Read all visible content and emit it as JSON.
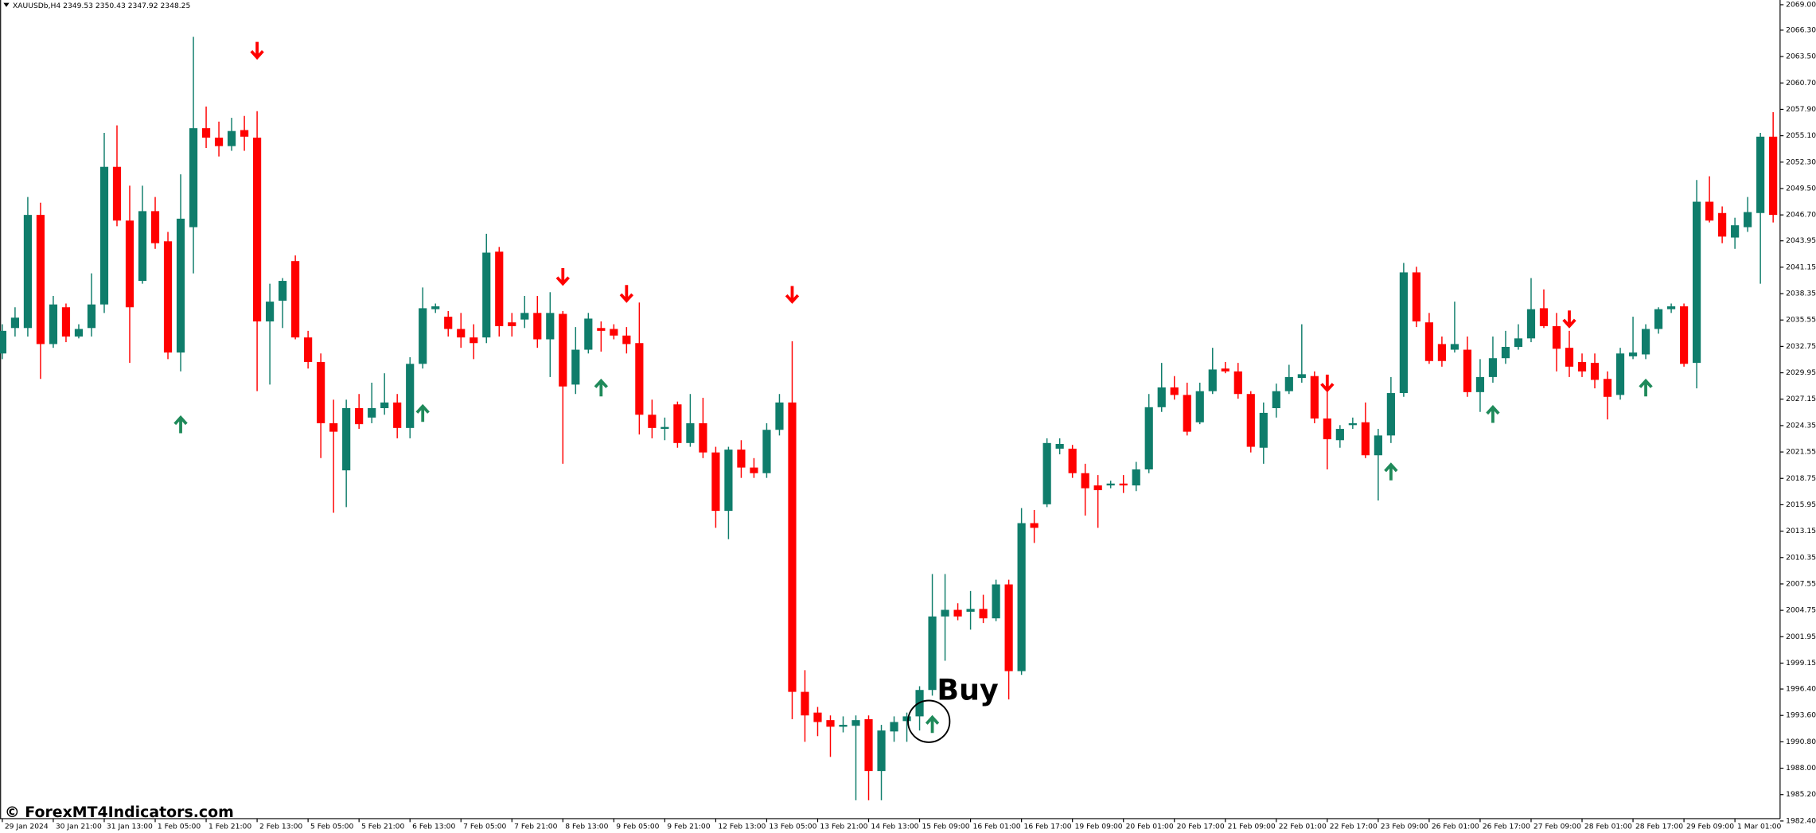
{
  "chart_data": {
    "type": "candlestick",
    "title": "XAUUSDb,H4  2349.53 2350.43 2347.92 2348.25",
    "watermark": "© ForexMT4Indicators.com",
    "annotation": "Buy",
    "up_color": "#0f7d6b",
    "down_color": "#ff0000",
    "ylim": [
      1982.65,
      2069.5
    ],
    "yticks": [
      {
        "value": 2069,
        "label": "2069.00"
      },
      {
        "value": 2066.3,
        "label": "2066.30"
      },
      {
        "value": 2063.5,
        "label": "2063.50"
      },
      {
        "value": 2060.7,
        "label": "2060.70"
      },
      {
        "value": 2057.9,
        "label": "2057.90"
      },
      {
        "value": 2055.1,
        "label": "2055.10"
      },
      {
        "value": 2052.3,
        "label": "2052.30"
      },
      {
        "value": 2049.5,
        "label": "2049.50"
      },
      {
        "value": 2046.7,
        "label": "2046.70"
      },
      {
        "value": 2043.95,
        "label": "2043.95"
      },
      {
        "value": 2041.15,
        "label": "2041.15"
      },
      {
        "value": 2038.35,
        "label": "2038.35"
      },
      {
        "value": 2035.55,
        "label": "2035.55"
      },
      {
        "value": 2032.75,
        "label": "2032.75"
      },
      {
        "value": 2029.95,
        "label": "2029.95"
      },
      {
        "value": 2027.15,
        "label": "2027.15"
      },
      {
        "value": 2024.35,
        "label": "2024.35"
      },
      {
        "value": 2021.55,
        "label": "2021.55"
      },
      {
        "value": 2018.75,
        "label": "2018.75"
      },
      {
        "value": 2015.95,
        "label": "2015.95"
      },
      {
        "value": 2013.15,
        "label": "2013.15"
      },
      {
        "value": 2010.35,
        "label": "2010.35"
      },
      {
        "value": 2007.55,
        "label": "2007.55"
      },
      {
        "value": 2004.75,
        "label": "2004.75"
      },
      {
        "value": 2001.95,
        "label": "2001.95"
      },
      {
        "value": 1999.15,
        "label": "1999.15"
      },
      {
        "value": 1996.4,
        "label": "1996.40"
      },
      {
        "value": 1993.6,
        "label": "1993.60"
      },
      {
        "value": 1990.8,
        "label": "1990.80"
      },
      {
        "value": 1988,
        "label": "1988.00"
      },
      {
        "value": 1985.2,
        "label": "1985.20"
      },
      {
        "value": 1982.4,
        "label": "1982.40"
      }
    ],
    "categories": [
      "29 Jan 2024",
      null,
      null,
      null,
      "30 Jan 21:00",
      null,
      null,
      null,
      "31 Jan 13:00",
      null,
      null,
      null,
      "1 Feb 05:00",
      null,
      null,
      null,
      "1 Feb 21:00",
      null,
      null,
      null,
      "2 Feb 13:00",
      null,
      null,
      null,
      "5 Feb 05:00",
      null,
      null,
      null,
      "5 Feb 21:00",
      null,
      null,
      null,
      "6 Feb 13:00",
      null,
      null,
      null,
      "7 Feb 05:00",
      null,
      null,
      null,
      "7 Feb 21:00",
      null,
      null,
      null,
      "8 Feb 13:00",
      null,
      null,
      null,
      "9 Feb 05:00",
      null,
      null,
      null,
      "9 Feb 21:00",
      null,
      null,
      null,
      "12 Feb 13:00",
      null,
      null,
      null,
      "13 Feb 05:00",
      null,
      null,
      null,
      "13 Feb 21:00",
      null,
      null,
      null,
      "14 Feb 13:00",
      null,
      null,
      null,
      "15 Feb 09:00",
      null,
      null,
      null,
      "16 Feb 01:00",
      null,
      null,
      null,
      "16 Feb 17:00",
      null,
      null,
      null,
      "19 Feb 09:00",
      null,
      null,
      null,
      "20 Feb 01:00",
      null,
      null,
      null,
      "20 Feb 17:00",
      null,
      null,
      null,
      "21 Feb 09:00",
      null,
      null,
      null,
      "22 Feb 01:00",
      null,
      null,
      null,
      "22 Feb 17:00",
      null,
      null,
      null,
      "23 Feb 09:00",
      null,
      null,
      null,
      "26 Feb 01:00",
      null,
      null,
      null,
      "26 Feb 17:00",
      null,
      null,
      null,
      "27 Feb 09:00",
      null,
      null,
      null,
      "28 Feb 01:00",
      null,
      null,
      null,
      "28 Feb 17:00",
      null,
      null,
      null,
      "29 Feb 09:00",
      null,
      null,
      null,
      "1 Mar 01:00",
      null,
      null,
      null
    ],
    "open": [
      2032.0,
      2034.7,
      2034.7,
      2046.7,
      2033.0,
      2036.9,
      2033.8,
      2034.7,
      2037.2,
      2051.8,
      2046.1,
      2039.7,
      2047.1,
      2043.9,
      2032.1,
      2045.4,
      2055.9,
      2054.9,
      2054.0,
      2055.7,
      2054.9,
      2035.4,
      2037.6,
      2041.8,
      2033.7,
      2031.1,
      2024.6,
      2019.6,
      2026.2,
      2025.2,
      2026.2,
      2026.8,
      2024.1,
      2030.9,
      2036.7,
      2035.9,
      2034.6,
      2033.7,
      2033.7,
      2042.8,
      2035.3,
      2035.6,
      2036.3,
      2033.5,
      2036.2,
      2028.7,
      2032.4,
      2034.7,
      2034.6,
      2033.9,
      2033.1,
      2025.5,
      2024.0,
      2026.6,
      2022.5,
      2024.6,
      2021.5,
      2015.3,
      2021.8,
      2019.9,
      2019.3,
      2023.9,
      2026.8,
      1996.1,
      1993.9,
      1993.1,
      1992.4,
      1992.5,
      1993.2,
      1987.7,
      1991.9,
      1993.0,
      1993.5,
      1996.3,
      2004.1,
      2004.8,
      2004.6,
      2004.9,
      2003.9,
      2007.5,
      1998.3,
      2014.0,
      2016.0,
      2021.9,
      2021.9,
      2019.3,
      2018.0,
      2018.0,
      2018.2,
      2018.0,
      2019.7,
      2026.3,
      2028.4,
      2027.6,
      2024.7,
      2028.0,
      2030.4,
      2030.1,
      2027.7,
      2022.0,
      2026.2,
      2028.0,
      2029.4,
      2029.6,
      2025.1,
      2022.8,
      2024.4,
      2024.7,
      2021.2,
      2023.3,
      2027.8,
      2040.6,
      2035.3,
      2033.0,
      2032.4,
      2032.4,
      2027.9,
      2029.5,
      2031.5,
      2032.7,
      2033.6,
      2036.8,
      2034.9,
      2032.6,
      2031.1,
      2031.0,
      2029.3,
      2027.6,
      2031.7,
      2031.9,
      2034.6,
      2036.7,
      2037.0,
      2031.0,
      2048.1,
      2046.9,
      2044.3,
      2045.4,
      2046.9,
      2055.0
    ],
    "high": [
      2035.1,
      2036.9,
      2048.6,
      2048.0,
      2038.1,
      2037.3,
      2035.1,
      2040.5,
      2055.4,
      2056.2,
      2049.8,
      2049.8,
      2048.6,
      2044.9,
      2051.0,
      2065.6,
      2058.2,
      2056.6,
      2057.0,
      2057.2,
      2057.7,
      2039.4,
      2040.0,
      2042.4,
      2034.4,
      2032.0,
      2027.1,
      2027.1,
      2027.7,
      2028.9,
      2029.9,
      2027.7,
      2031.6,
      2039.0,
      2037.3,
      2036.5,
      2036.3,
      2035.1,
      2044.7,
      2043.3,
      2036.3,
      2038.1,
      2038.1,
      2038.5,
      2036.5,
      2034.8,
      2036.3,
      2035.4,
      2035.1,
      2034.8,
      2037.4,
      2027.1,
      2025.2,
      2026.9,
      2027.7,
      2027.3,
      2022.1,
      2022.1,
      2022.8,
      2020.9,
      2024.6,
      2027.7,
      2033.3,
      1998.4,
      1994.5,
      1993.6,
      1993.5,
      1993.6,
      1993.6,
      1992.6,
      1993.5,
      1993.9,
      1996.7,
      2008.6,
      2008.6,
      2005.5,
      2006.8,
      2006.4,
      2008.0,
      2008.0,
      2015.6,
      2015.4,
      2023.0,
      2023.0,
      2022.3,
      2020.3,
      2019.1,
      2018.5,
      2019.1,
      2020.5,
      2027.7,
      2031.0,
      2029.6,
      2028.9,
      2028.9,
      2032.6,
      2031.1,
      2031.0,
      2028.0,
      2026.8,
      2028.8,
      2030.8,
      2035.1,
      2030.1,
      2028.3,
      2024.4,
      2025.2,
      2026.8,
      2024.0,
      2029.5,
      2041.6,
      2041.2,
      2036.3,
      2033.8,
      2037.5,
      2033.8,
      2031.4,
      2033.8,
      2034.4,
      2035.1,
      2040.0,
      2038.8,
      2036.3,
      2034.4,
      2032.0,
      2032.0,
      2030.1,
      2032.6,
      2035.9,
      2035.1,
      2036.9,
      2037.3,
      2037.3,
      2050.4,
      2050.8,
      2047.6,
      2046.4,
      2048.6,
      2055.4,
      2057.6
    ],
    "low": [
      2031.4,
      2033.8,
      2033.8,
      2029.3,
      2032.6,
      2033.2,
      2033.6,
      2033.8,
      2036.3,
      2045.5,
      2031.0,
      2039.4,
      2043.1,
      2031.4,
      2030.1,
      2040.5,
      2053.8,
      2052.9,
      2053.5,
      2053.5,
      2028.0,
      2028.7,
      2034.7,
      2033.5,
      2030.4,
      2020.9,
      2015.1,
      2015.7,
      2024.0,
      2024.6,
      2025.5,
      2023.0,
      2023.0,
      2030.4,
      2036.3,
      2033.8,
      2032.6,
      2031.4,
      2033.1,
      2033.8,
      2033.8,
      2034.7,
      2032.6,
      2029.5,
      2020.3,
      2027.7,
      2032.0,
      2032.2,
      2033.5,
      2032.0,
      2023.4,
      2023.0,
      2022.8,
      2022.0,
      2022.1,
      2020.9,
      2013.5,
      2012.3,
      2018.8,
      2018.8,
      2018.8,
      2023.3,
      1993.2,
      1990.8,
      1991.4,
      1989.2,
      1991.8,
      1984.6,
      1984.6,
      1984.6,
      1990.8,
      1990.8,
      1992.0,
      1995.7,
      1999.4,
      2003.7,
      2002.7,
      2003.4,
      2003.6,
      1995.3,
      1997.9,
      2011.9,
      2015.7,
      2021.3,
      2018.8,
      2014.8,
      2013.5,
      2017.7,
      2017.2,
      2017.4,
      2019.3,
      2025.8,
      2027.1,
      2023.3,
      2024.5,
      2027.7,
      2029.9,
      2027.2,
      2021.5,
      2020.3,
      2025.2,
      2027.7,
      2028.9,
      2024.6,
      2019.7,
      2022.0,
      2024.0,
      2020.9,
      2016.4,
      2022.5,
      2027.4,
      2034.8,
      2030.9,
      2030.6,
      2032.1,
      2027.4,
      2025.8,
      2028.9,
      2030.9,
      2032.4,
      2033.2,
      2034.7,
      2030.1,
      2029.5,
      2029.5,
      2028.3,
      2025.0,
      2027.1,
      2031.4,
      2031.4,
      2034.1,
      2036.3,
      2030.6,
      2028.3,
      2045.9,
      2043.7,
      2043.1,
      2044.9,
      2039.4,
      2045.9
    ],
    "close": [
      2034.4,
      2035.8,
      2046.7,
      2033.0,
      2037.2,
      2033.8,
      2034.6,
      2037.2,
      2051.8,
      2046.1,
      2036.9,
      2047.1,
      2043.7,
      2032.1,
      2046.3,
      2055.9,
      2054.9,
      2054.0,
      2055.6,
      2055.0,
      2035.4,
      2037.5,
      2039.7,
      2033.7,
      2031.1,
      2024.6,
      2023.7,
      2026.2,
      2024.5,
      2026.2,
      2026.8,
      2024.1,
      2030.9,
      2036.8,
      2037.0,
      2034.6,
      2033.7,
      2033.1,
      2042.7,
      2034.9,
      2034.9,
      2036.3,
      2033.5,
      2036.3,
      2028.5,
      2032.4,
      2035.7,
      2034.4,
      2033.9,
      2033.0,
      2025.5,
      2024.1,
      2024.2,
      2022.5,
      2024.6,
      2021.5,
      2015.3,
      2021.8,
      2019.9,
      2019.3,
      2023.9,
      2026.8,
      1996.1,
      1993.6,
      1992.9,
      1992.4,
      1992.6,
      1993.1,
      1987.7,
      1992.0,
      1992.9,
      1993.5,
      1996.3,
      2004.1,
      2004.8,
      2004.1,
      2004.9,
      2003.9,
      2007.5,
      1998.3,
      2014.0,
      2013.5,
      2022.5,
      2022.4,
      2019.3,
      2017.7,
      2017.5,
      2018.2,
      2018.0,
      2019.7,
      2026.3,
      2028.4,
      2027.6,
      2023.7,
      2028.0,
      2030.3,
      2030.1,
      2027.7,
      2022.1,
      2025.7,
      2028.0,
      2029.5,
      2029.8,
      2025.1,
      2022.9,
      2024.0,
      2024.6,
      2021.2,
      2023.3,
      2027.8,
      2040.6,
      2035.4,
      2031.2,
      2031.2,
      2033.0,
      2027.9,
      2029.5,
      2031.5,
      2032.7,
      2033.6,
      2036.7,
      2034.9,
      2032.5,
      2030.6,
      2030.1,
      2029.2,
      2027.4,
      2032.0,
      2032.1,
      2034.6,
      2036.7,
      2037.0,
      2030.9,
      2048.1,
      2046.1,
      2044.4,
      2045.6,
      2047.0,
      2055.0,
      2046.7
    ],
    "buy_arrows": {
      "color": "#1f8a5a",
      "values": [
        null,
        null,
        null,
        null,
        null,
        null,
        null,
        null,
        null,
        null,
        null,
        null,
        null,
        null,
        2024.4,
        null,
        null,
        null,
        null,
        null,
        null,
        null,
        null,
        null,
        null,
        null,
        null,
        null,
        null,
        null,
        null,
        null,
        null,
        2025.6,
        null,
        null,
        null,
        null,
        null,
        null,
        null,
        null,
        null,
        null,
        null,
        null,
        null,
        2028.3,
        null,
        null,
        null,
        null,
        null,
        null,
        null,
        null,
        null,
        null,
        null,
        null,
        null,
        null,
        null,
        null,
        null,
        null,
        null,
        null,
        null,
        null,
        null,
        null,
        null,
        1992.6,
        null,
        null,
        null,
        null,
        null,
        null,
        null,
        null,
        null,
        null,
        null,
        null,
        null,
        null,
        null,
        null,
        null,
        null,
        null,
        null,
        null,
        null,
        null,
        null,
        null,
        null,
        null,
        null,
        null,
        null,
        null,
        null,
        null,
        null,
        null,
        2019.4,
        null,
        null,
        null,
        null,
        null,
        null,
        null,
        2025.5,
        null,
        null,
        null,
        null,
        null,
        null,
        null,
        null,
        null,
        null,
        null,
        2028.3,
        null,
        null,
        null,
        null,
        null,
        null,
        null,
        null,
        null,
        null
      ]
    },
    "sell_arrows": {
      "color": "#ff0000",
      "values": [
        null,
        null,
        null,
        null,
        null,
        null,
        null,
        null,
        null,
        null,
        null,
        null,
        null,
        null,
        null,
        null,
        null,
        null,
        null,
        null,
        2064.2,
        null,
        null,
        null,
        null,
        null,
        null,
        null,
        null,
        null,
        null,
        null,
        null,
        null,
        null,
        null,
        null,
        null,
        null,
        null,
        null,
        null,
        null,
        null,
        2040.2,
        null,
        null,
        null,
        null,
        2038.4,
        null,
        null,
        null,
        null,
        null,
        null,
        null,
        null,
        null,
        null,
        null,
        null,
        2038.3,
        null,
        null,
        null,
        null,
        null,
        null,
        null,
        null,
        null,
        null,
        null,
        null,
        null,
        null,
        null,
        null,
        null,
        null,
        null,
        null,
        null,
        null,
        null,
        null,
        null,
        null,
        null,
        null,
        null,
        null,
        null,
        null,
        null,
        null,
        null,
        null,
        null,
        null,
        null,
        null,
        null,
        2028.9,
        null,
        null,
        null,
        null,
        null,
        null,
        null,
        null,
        null,
        null,
        null,
        null,
        null,
        null,
        null,
        null,
        null,
        null,
        2035.7,
        null,
        null,
        null,
        null,
        null,
        null,
        null,
        null,
        null,
        null,
        null,
        null,
        null,
        null,
        null,
        null
      ]
    }
  }
}
